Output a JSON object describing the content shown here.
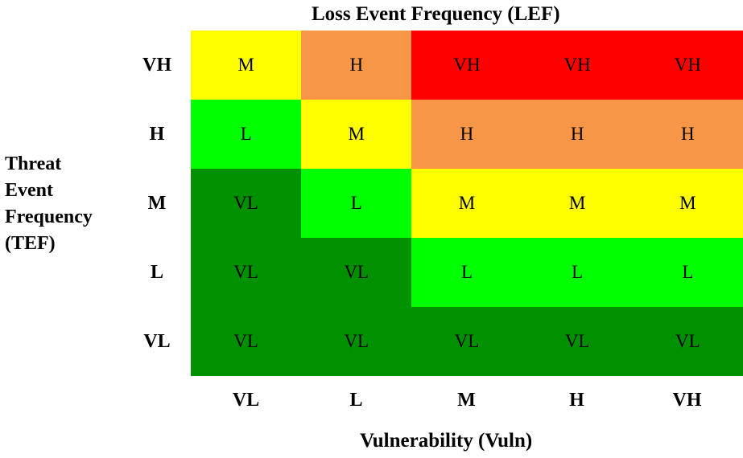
{
  "title": "Loss Event Frequency (LEF)",
  "y_title": [
    "Threat",
    "Event",
    "Frequency",
    "(TEF)"
  ],
  "x_title": "Vulnerability (Vuln)",
  "row_labels": [
    "VH",
    "H",
    "M",
    "L",
    "VL"
  ],
  "col_labels": [
    "VL",
    "L",
    "M",
    "H",
    "VH"
  ],
  "colors": {
    "VL": "#009000",
    "L": "#00ff00",
    "M": "#ffff00",
    "H": "#f79646",
    "VH": "#ff0000"
  },
  "chart_data": {
    "type": "heatmap",
    "title": "Loss Event Frequency (LEF)",
    "xlabel": "Vulnerability (Vuln)",
    "ylabel": "Threat Event Frequency (TEF)",
    "x": [
      "VL",
      "L",
      "M",
      "H",
      "VH"
    ],
    "y": [
      "VH",
      "H",
      "M",
      "L",
      "VL"
    ],
    "values": [
      [
        "M",
        "H",
        "VH",
        "VH",
        "VH"
      ],
      [
        "L",
        "M",
        "H",
        "H",
        "H"
      ],
      [
        "VL",
        "L",
        "M",
        "M",
        "M"
      ],
      [
        "VL",
        "VL",
        "L",
        "L",
        "L"
      ],
      [
        "VL",
        "VL",
        "VL",
        "VL",
        "VL"
      ]
    ]
  }
}
